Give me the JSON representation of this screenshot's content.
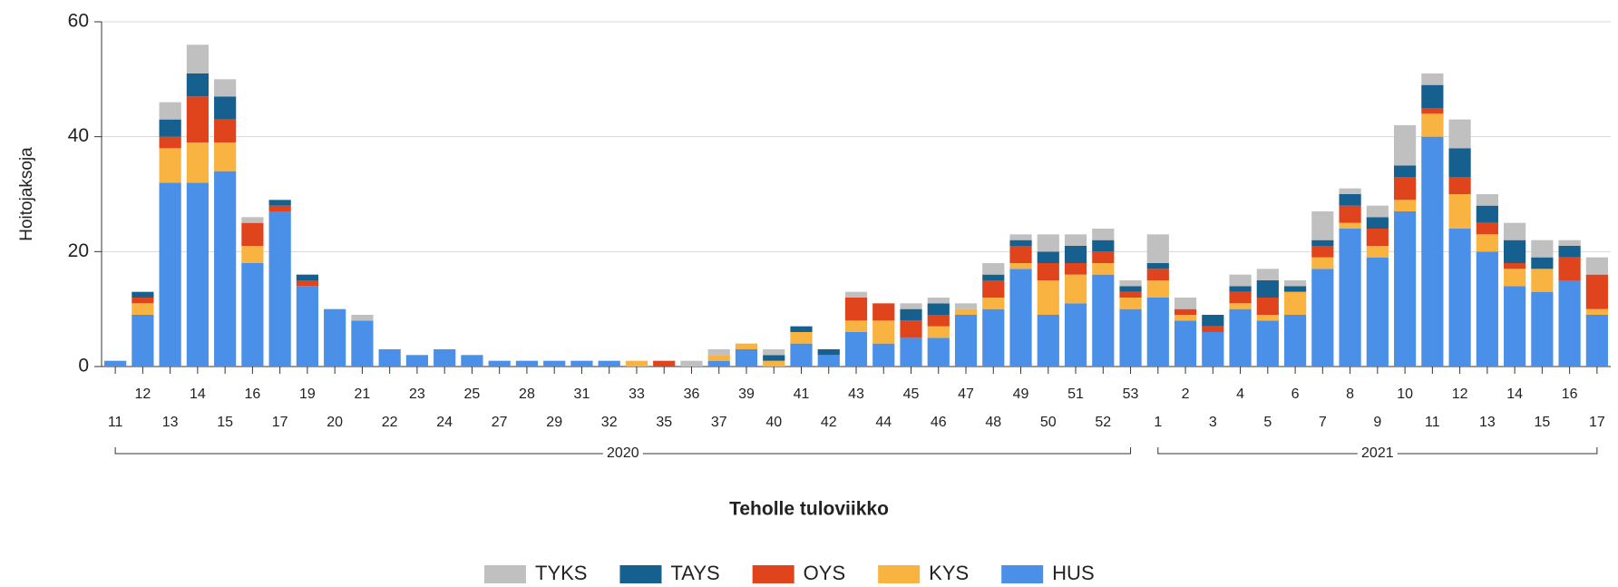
{
  "chart_data": {
    "type": "stacked_bar",
    "y_label": "Hoitojaksoja",
    "x_label": "Teholle tuloviikko",
    "groups": [
      {
        "name": "2020",
        "categories": [
          "11",
          "12",
          "13",
          "14",
          "15",
          "16",
          "17",
          "19",
          "20",
          "21",
          "22",
          "23",
          "24",
          "25",
          "27",
          "28",
          "29",
          "31",
          "32",
          "33",
          "35",
          "36",
          "37",
          "39",
          "40",
          "41",
          "42",
          "43",
          "44",
          "45",
          "46",
          "47",
          "48",
          "49",
          "50",
          "51",
          "52",
          "53"
        ]
      },
      {
        "name": "2021",
        "categories": [
          "1",
          "2",
          "3",
          "4",
          "5",
          "6",
          "7",
          "8",
          "9",
          "10",
          "11",
          "12",
          "13",
          "14",
          "15",
          "16",
          "17"
        ]
      }
    ],
    "series": [
      {
        "name": "TYKS",
        "color": "#c0c0c0",
        "values": [
          0,
          0,
          3,
          5,
          3,
          1,
          0,
          0,
          0,
          1,
          0,
          0,
          0,
          0,
          0,
          0,
          0,
          0,
          0,
          0,
          0,
          1,
          1,
          0,
          1,
          0,
          0,
          1,
          0,
          1,
          1,
          1,
          2,
          1,
          3,
          2,
          2,
          1,
          5,
          2,
          0,
          2,
          2,
          1,
          5,
          1,
          2,
          7,
          2,
          5,
          2,
          3,
          3,
          1,
          3
        ]
      },
      {
        "name": "TAYS",
        "color": "#15608f",
        "values": [
          0,
          1,
          3,
          4,
          4,
          0,
          1,
          1,
          0,
          0,
          0,
          0,
          0,
          0,
          0,
          0,
          0,
          0,
          0,
          0,
          0,
          0,
          0,
          0,
          1,
          1,
          1,
          0,
          0,
          2,
          2,
          0,
          1,
          1,
          2,
          3,
          2,
          1,
          1,
          0,
          2,
          1,
          3,
          1,
          1,
          2,
          2,
          2,
          4,
          5,
          3,
          4,
          2,
          2,
          0
        ]
      },
      {
        "name": "OYS",
        "color": "#e0441c",
        "values": [
          0,
          1,
          2,
          8,
          4,
          4,
          1,
          1,
          0,
          0,
          0,
          0,
          0,
          0,
          0,
          0,
          0,
          0,
          0,
          0,
          1,
          0,
          0,
          0,
          0,
          0,
          0,
          4,
          3,
          3,
          2,
          0,
          3,
          3,
          3,
          2,
          2,
          1,
          2,
          1,
          1,
          2,
          3,
          0,
          2,
          3,
          3,
          4,
          1,
          3,
          2,
          1,
          0,
          4,
          6
        ]
      },
      {
        "name": "KYS",
        "color": "#f9b340",
        "values": [
          0,
          2,
          6,
          7,
          5,
          3,
          0,
          0,
          0,
          0,
          0,
          0,
          0,
          0,
          0,
          0,
          0,
          0,
          0,
          1,
          0,
          0,
          1,
          1,
          1,
          2,
          0,
          2,
          4,
          0,
          2,
          1,
          2,
          1,
          6,
          5,
          2,
          2,
          3,
          1,
          0,
          1,
          1,
          4,
          2,
          1,
          2,
          2,
          4,
          6,
          3,
          3,
          4,
          0,
          1
        ]
      },
      {
        "name": "HUS",
        "color": "#4a8fe8",
        "values": [
          1,
          9,
          32,
          32,
          34,
          18,
          27,
          14,
          10,
          8,
          3,
          2,
          3,
          2,
          1,
          1,
          1,
          1,
          1,
          0,
          0,
          0,
          1,
          3,
          0,
          4,
          2,
          6,
          4,
          5,
          5,
          9,
          10,
          17,
          9,
          11,
          16,
          10,
          12,
          8,
          6,
          10,
          8,
          9,
          17,
          24,
          19,
          27,
          40,
          24,
          20,
          14,
          13,
          15,
          9
        ]
      }
    ],
    "ylim": [
      0,
      60
    ],
    "yticks": [
      0,
      20,
      40,
      60
    ],
    "grid": true
  }
}
